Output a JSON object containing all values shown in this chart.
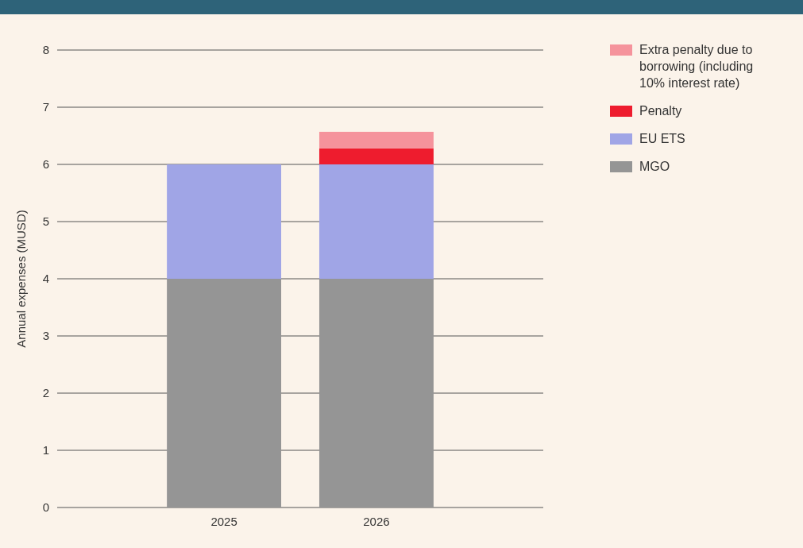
{
  "chart_data": {
    "type": "bar",
    "stacked": true,
    "categories": [
      "2025",
      "2026"
    ],
    "ylabel": "Annual expenses (MUSD)",
    "ylim": [
      0,
      8
    ],
    "yticks": [
      0,
      1,
      2,
      3,
      4,
      5,
      6,
      7,
      8
    ],
    "grid": "y",
    "legend": "top right",
    "series": [
      {
        "name": "MGO",
        "color": "#959595",
        "values": [
          4,
          4
        ]
      },
      {
        "name": "EU ETS",
        "color": "#a0a5e6",
        "values": [
          2,
          2
        ]
      },
      {
        "name": "Penalty",
        "color": "#ee1c2e",
        "values": [
          0,
          0.28
        ]
      },
      {
        "name": "Extra penalty due to borrowing (including 10% interest rate)",
        "color": "#f5939c",
        "values": [
          0,
          0.29
        ]
      }
    ]
  }
}
